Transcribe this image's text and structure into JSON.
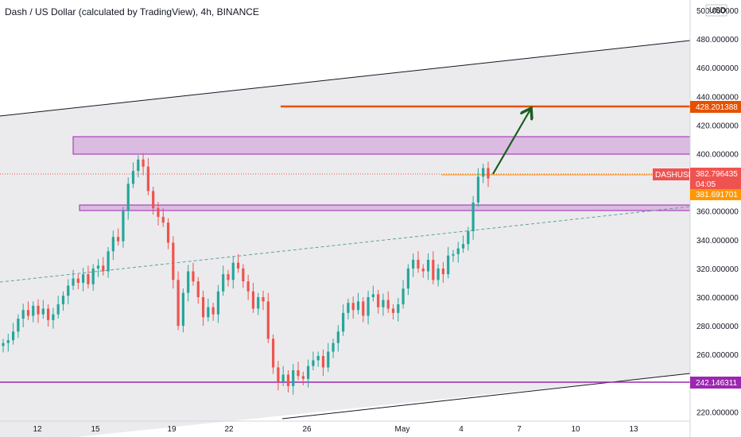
{
  "header": {
    "title": "Dash / US Dollar (calculated by TradingView), 4h, BINANCE"
  },
  "price_axis": {
    "currency": "USD",
    "ticks": [
      "500.000000",
      "480.000000",
      "460.000000",
      "440.000000",
      "420.000000",
      "400.000000",
      "380.000000",
      "360.000000",
      "340.000000",
      "320.000000",
      "300.000000",
      "280.000000",
      "260.000000",
      "240.000000",
      "220.000000"
    ]
  },
  "time_axis": {
    "ticks": [
      "12",
      "15",
      "19",
      "22",
      "26",
      "May",
      "4",
      "7",
      "10",
      "13"
    ]
  },
  "tags": {
    "target": "428.201388",
    "symbol": "DASHUSD",
    "last_price": "382.796435",
    "countdown": "04:05",
    "prev_price": "381.691701",
    "support": "242.146311"
  },
  "colors": {
    "up": "#26a69a",
    "down": "#ef5350",
    "target_line": "#e65100",
    "zone_fill": "#ce93d8",
    "zone_border": "#9c27b0",
    "channel_fill": "#e8e8ea",
    "arrow": "#1b5e20",
    "support_line": "#9c27b0",
    "trendline": "#5f9ea0"
  },
  "chart_data": {
    "type": "candlestick",
    "symbol": "DASHUSD",
    "interval": "4h",
    "exchange": "BINANCE",
    "y_range": [
      218,
      505
    ],
    "last_price": 382.796435,
    "target_level": 428.201388,
    "support_level": 242.146311,
    "resistance_zone": [
      397,
      410
    ],
    "support_zone": [
      358,
      362
    ],
    "closes": [
      268,
      270,
      276,
      285,
      291,
      287,
      294,
      288,
      292,
      284,
      288,
      295,
      301,
      308,
      313,
      310,
      316,
      309,
      320,
      322,
      318,
      332,
      342,
      339,
      360,
      379,
      388,
      396,
      391,
      374,
      362,
      356,
      352,
      338,
      312,
      280,
      303,
      318,
      311,
      300,
      286,
      293,
      288,
      304,
      316,
      312,
      324,
      320,
      311,
      304,
      292,
      300,
      297,
      271,
      251,
      241,
      246,
      238,
      249,
      245,
      243,
      252,
      256,
      259,
      251,
      262,
      268,
      276,
      289,
      296,
      291,
      297,
      287,
      300,
      302,
      293,
      298,
      292,
      289,
      295,
      306,
      320,
      326,
      320,
      318,
      326,
      312,
      320,
      316,
      329,
      330,
      334,
      337,
      346,
      366,
      384,
      390,
      382.8
    ]
  }
}
